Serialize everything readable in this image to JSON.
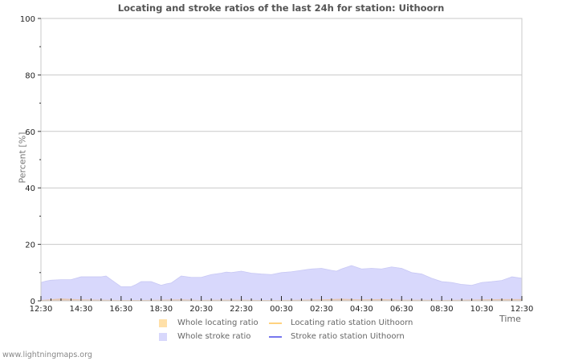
{
  "chart_data": {
    "type": "area",
    "title": "Locating and stroke ratios of the last 24h for station: Uithoorn",
    "xlabel": "Time",
    "ylabel": "Percent   [%]",
    "ylim": [
      0,
      100
    ],
    "y_ticks": [
      0,
      20,
      40,
      60,
      80,
      100
    ],
    "x_tick_labels": [
      "12:30",
      "14:30",
      "16:30",
      "18:30",
      "20:30",
      "22:30",
      "00:30",
      "02:30",
      "04:30",
      "06:30",
      "08:30",
      "10:30",
      "12:30"
    ],
    "grid": true,
    "legend_position": "bottom",
    "series": [
      {
        "name": "Whole locating ratio",
        "kind": "area",
        "color": "#ffe0a8",
        "x_hours": [
          0,
          1,
          2,
          3,
          4,
          5,
          6,
          7,
          8,
          9,
          10,
          11,
          12,
          13,
          14,
          15,
          16,
          17,
          18,
          19,
          20,
          21,
          22,
          23,
          24
        ],
        "values": [
          0.3,
          0.8,
          0.5,
          0.4,
          0.3,
          0.3,
          0.4,
          0.5,
          0.3,
          0.4,
          0.4,
          0.3,
          0.3,
          0.4,
          0.5,
          0.7,
          0.5,
          0.6,
          0.4,
          0.4,
          0.3,
          0.4,
          0.5,
          0.6,
          0.6
        ]
      },
      {
        "name": "Whole stroke ratio",
        "kind": "area",
        "color": "#d8d8fc",
        "x_hours": [
          0,
          0.25,
          0.5,
          1,
          1.5,
          2,
          2.5,
          3,
          3.25,
          3.5,
          4,
          4.5,
          4.75,
          5,
          5.5,
          6,
          6.25,
          6.5,
          7,
          7.5,
          8,
          8.5,
          9,
          9.25,
          9.5,
          10,
          10.5,
          11,
          11.5,
          12,
          12.5,
          13,
          13.5,
          14,
          14.5,
          14.75,
          15,
          15.5,
          16,
          16.5,
          17,
          17.5,
          18,
          18.5,
          19,
          19.5,
          20,
          20.5,
          21,
          21.5,
          22,
          22.5,
          23,
          23.5,
          24
        ],
        "values": [
          6.5,
          7.0,
          7.3,
          7.5,
          7.5,
          8.5,
          8.5,
          8.5,
          8.8,
          7.5,
          5.0,
          5.0,
          5.8,
          6.8,
          6.8,
          5.5,
          6.0,
          6.3,
          8.8,
          8.3,
          8.3,
          9.3,
          9.8,
          10.2,
          10.0,
          10.5,
          9.8,
          9.5,
          9.3,
          10.0,
          10.3,
          10.8,
          11.3,
          11.5,
          10.8,
          10.5,
          11.3,
          12.5,
          11.3,
          11.5,
          11.3,
          12.0,
          11.5,
          10.0,
          9.5,
          8.0,
          6.8,
          6.5,
          5.8,
          5.5,
          6.5,
          6.8,
          7.2,
          8.5,
          8.0
        ]
      },
      {
        "name": "Locating ratio station Uithoorn",
        "kind": "line",
        "color": "#ffd27f",
        "values": []
      },
      {
        "name": "Stroke ratio station Uithoorn",
        "kind": "line",
        "color": "#7777ee",
        "values": []
      }
    ]
  },
  "footer": "www.lightningmaps.org"
}
